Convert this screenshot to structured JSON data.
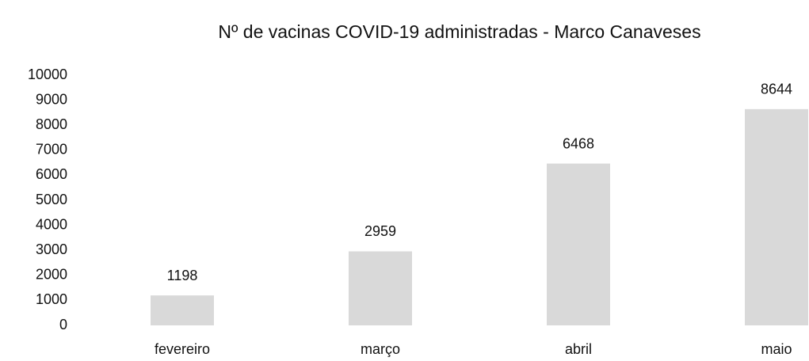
{
  "chart_data": {
    "type": "bar",
    "title": "Nº de vacinas COVID-19 administradas - Marco Canaveses",
    "categories": [
      "fevereiro",
      "março",
      "abril",
      "maio"
    ],
    "values": [
      1198,
      2959,
      6468,
      8644
    ],
    "color": "#d9d9d9",
    "ylim": [
      0,
      10000
    ],
    "yticks": [
      0,
      1000,
      2000,
      3000,
      4000,
      5000,
      6000,
      7000,
      8000,
      9000,
      10000
    ],
    "grid": false
  }
}
